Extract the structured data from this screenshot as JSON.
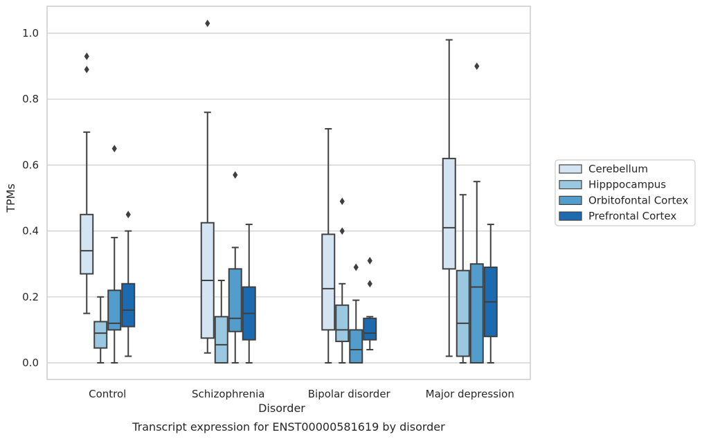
{
  "chart_data": {
    "type": "box",
    "title": "",
    "caption": "Transcript expression for ENST00000581619 by disorder",
    "xlabel": "Disorder",
    "ylabel": "TPMs",
    "categories": [
      "Control",
      "Schizophrenia",
      "Bipolar disorder",
      "Major depression"
    ],
    "ylim": [
      -0.05,
      1.08
    ],
    "yticks": [
      0.0,
      0.2,
      0.4,
      0.6,
      0.8,
      1.0
    ],
    "ytick_labels": [
      "0.0",
      "0.2",
      "0.4",
      "0.6",
      "0.8",
      "1.0"
    ],
    "grid": "horizontal",
    "legend_position": "right",
    "series": [
      {
        "name": "Cerebellum",
        "color": "#d3e4f3",
        "boxes": [
          {
            "whislo": 0.15,
            "q1": 0.27,
            "med": 0.34,
            "q3": 0.45,
            "whishi": 0.7,
            "fliers": [
              0.89,
              0.93
            ]
          },
          {
            "whislo": 0.03,
            "q1": 0.075,
            "med": 0.25,
            "q3": 0.425,
            "whishi": 0.76,
            "fliers": [
              1.03
            ]
          },
          {
            "whislo": 0.0,
            "q1": 0.1,
            "med": 0.225,
            "q3": 0.39,
            "whishi": 0.71,
            "fliers": []
          },
          {
            "whislo": 0.02,
            "q1": 0.285,
            "med": 0.41,
            "q3": 0.62,
            "whishi": 0.98,
            "fliers": []
          }
        ]
      },
      {
        "name": "Hipppocampus",
        "color": "#9ac8e0",
        "boxes": [
          {
            "whislo": 0.0,
            "q1": 0.045,
            "med": 0.09,
            "q3": 0.125,
            "whishi": 0.2,
            "fliers": []
          },
          {
            "whislo": 0.0,
            "q1": 0.0,
            "med": 0.055,
            "q3": 0.14,
            "whishi": 0.25,
            "fliers": []
          },
          {
            "whislo": 0.0,
            "q1": 0.065,
            "med": 0.1,
            "q3": 0.175,
            "whishi": 0.24,
            "fliers": [
              0.4,
              0.49
            ]
          },
          {
            "whislo": 0.0,
            "q1": 0.02,
            "med": 0.12,
            "q3": 0.28,
            "whishi": 0.51,
            "fliers": []
          }
        ]
      },
      {
        "name": "Orbitofontal Cortex",
        "color": "#529dcc",
        "boxes": [
          {
            "whislo": 0.0,
            "q1": 0.1,
            "med": 0.12,
            "q3": 0.22,
            "whishi": 0.38,
            "fliers": [
              0.65
            ]
          },
          {
            "whislo": 0.0,
            "q1": 0.095,
            "med": 0.135,
            "q3": 0.285,
            "whishi": 0.35,
            "fliers": [
              0.57
            ]
          },
          {
            "whislo": 0.0,
            "q1": 0.0,
            "med": 0.04,
            "q3": 0.1,
            "whishi": 0.19,
            "fliers": [
              0.29
            ]
          },
          {
            "whislo": 0.0,
            "q1": 0.0,
            "med": 0.23,
            "q3": 0.3,
            "whishi": 0.55,
            "fliers": [
              0.9
            ]
          }
        ]
      },
      {
        "name": "Prefrontal Cortex",
        "color": "#1c6aaf",
        "boxes": [
          {
            "whislo": 0.02,
            "q1": 0.11,
            "med": 0.16,
            "q3": 0.24,
            "whishi": 0.4,
            "fliers": [
              0.45
            ]
          },
          {
            "whislo": 0.0,
            "q1": 0.07,
            "med": 0.15,
            "q3": 0.23,
            "whishi": 0.42,
            "fliers": []
          },
          {
            "whislo": 0.04,
            "q1": 0.07,
            "med": 0.09,
            "q3": 0.135,
            "whishi": 0.14,
            "fliers": [
              0.24,
              0.31
            ]
          },
          {
            "whislo": 0.0,
            "q1": 0.08,
            "med": 0.185,
            "q3": 0.29,
            "whishi": 0.42,
            "fliers": []
          }
        ]
      }
    ]
  }
}
